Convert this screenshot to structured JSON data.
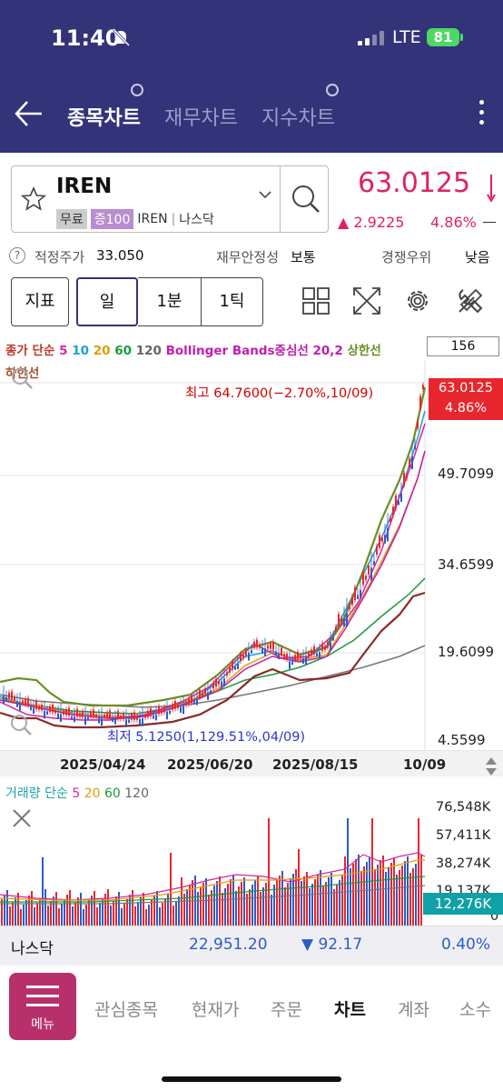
{
  "status": {
    "time": "11:40",
    "network": "LTE",
    "battery": "81"
  },
  "header": {
    "tabs": [
      {
        "label": "종목차트",
        "active": true
      },
      {
        "label": "재무차트",
        "active": false
      },
      {
        "label": "지수차트",
        "active": false
      }
    ]
  },
  "stock": {
    "ticker": "IREN",
    "tags": [
      "무료",
      "증100",
      "IREN",
      "나스닥"
    ],
    "price": "63.0125",
    "change": "▲ 2.9225",
    "change_pct": "4.86%"
  },
  "info": {
    "fair_price_label": "적정주가",
    "fair_price": "33.050",
    "stability_label": "재무안정성",
    "stability": "보통",
    "competition_label": "경쟁우위",
    "competition": "낮음"
  },
  "toolbar": {
    "buttons": [
      "지표",
      "일",
      "1분",
      "1틱"
    ],
    "count": "156"
  },
  "chart": {
    "legend": [
      {
        "text": "종가 단순",
        "color": "#c0392b"
      },
      {
        "text": "5",
        "color": "#d6249f"
      },
      {
        "text": "10",
        "color": "#1aa3d8"
      },
      {
        "text": "20",
        "color": "#e39b0b"
      },
      {
        "text": "60",
        "color": "#1a9c3a"
      },
      {
        "text": "120",
        "color": "#666666"
      },
      {
        "text": "Bollinger Bands중심선 20,2",
        "color": "#c21db0"
      },
      {
        "text": "상한선",
        "color": "#6b8e23"
      }
    ],
    "legend_lower": "하한선",
    "high_label": "최고 64.7600(−2.70%,10/09)",
    "low_label": "최저 5.1250(1,129.51%,04/09)",
    "y_ticks": [
      "49.7099",
      "34.6599",
      "19.6099",
      "4.5599"
    ],
    "current_price": "63.0125",
    "current_pct": "4.86%",
    "dates": [
      "2025/04/24",
      "2025/06/20",
      "2025/08/15",
      "10/09"
    ]
  },
  "volume": {
    "legend": [
      {
        "text": "거래량 단순",
        "color": "#1aa3a6"
      },
      {
        "text": "5",
        "color": "#d6249f"
      },
      {
        "text": "20",
        "color": "#e39b0b"
      },
      {
        "text": "60",
        "color": "#1a9c3a"
      },
      {
        "text": "120",
        "color": "#666666"
      }
    ],
    "y_ticks": [
      "76,548K",
      "57,411K",
      "38,274K",
      "19,137K",
      "0"
    ],
    "current": "12,276K"
  },
  "index_bar": {
    "name": "나스닥",
    "value": "22,951.20",
    "change": "▼ 92.17",
    "pct": "0.40%"
  },
  "nav": {
    "menu": "메뉴",
    "items": [
      "관심종목",
      "현재가",
      "주문",
      "차트",
      "계좌",
      "소수"
    ],
    "active": "차트"
  }
}
